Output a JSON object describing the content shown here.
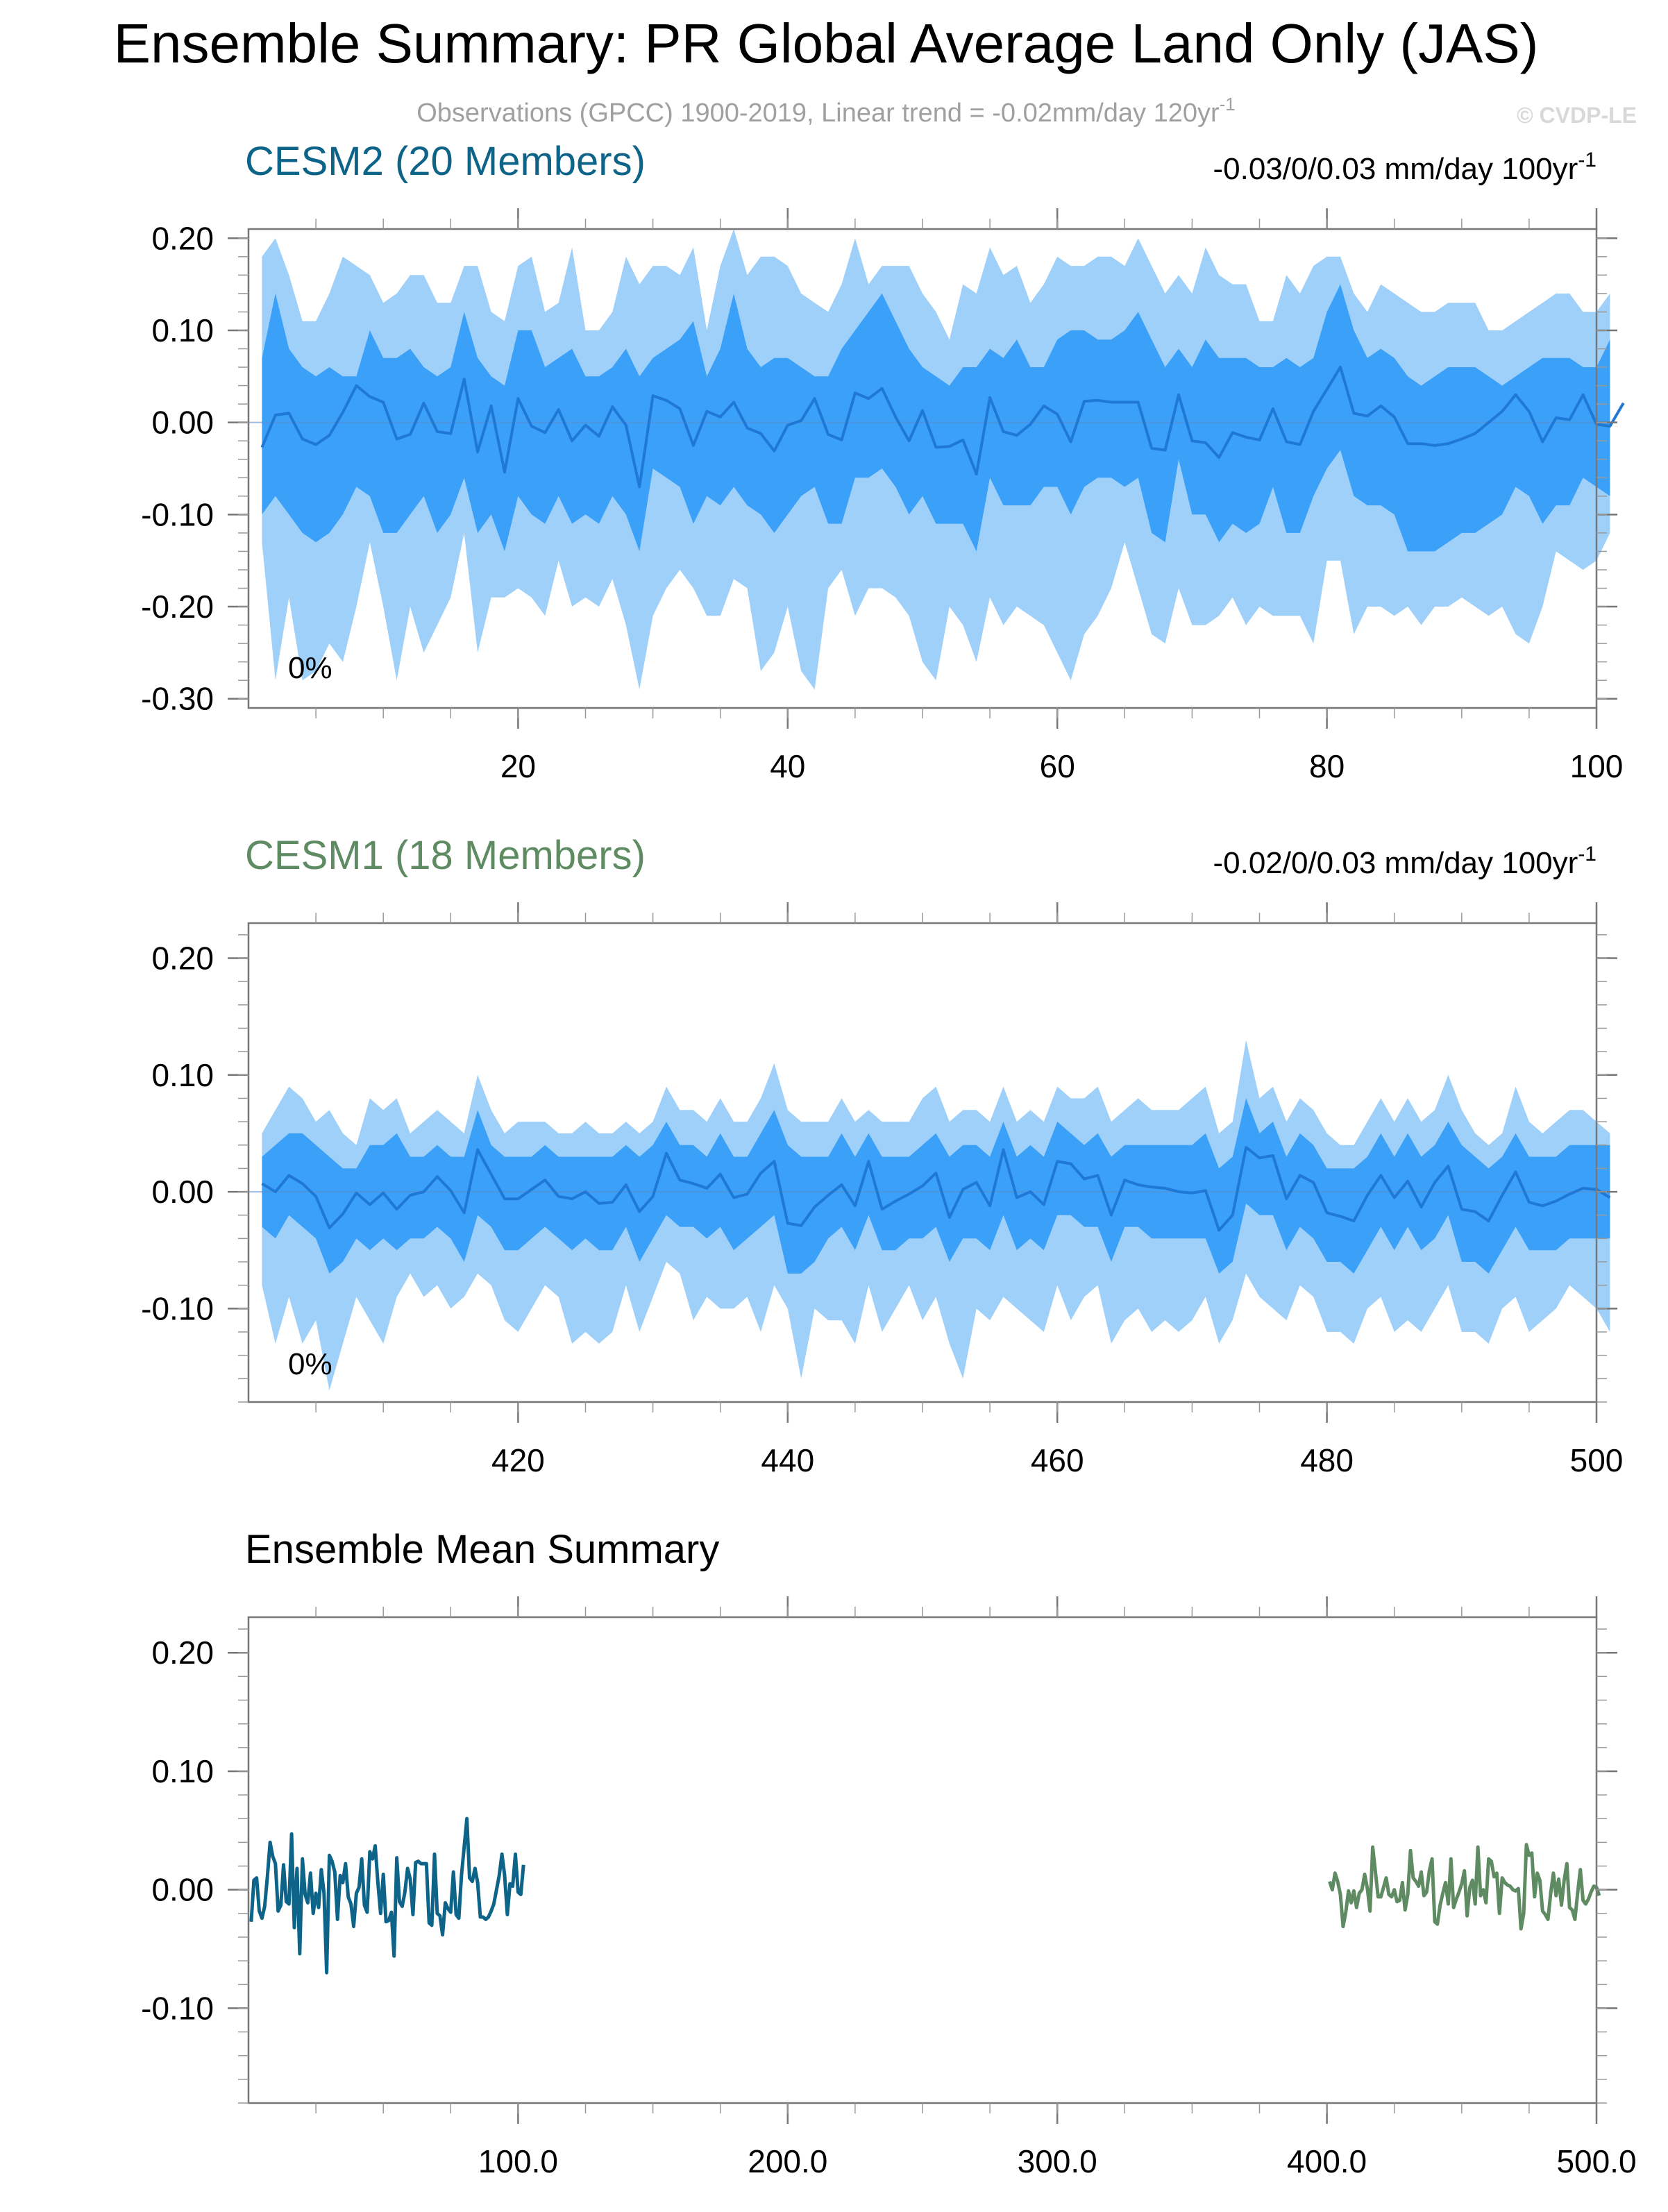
{
  "header": {
    "title": "Ensemble Summary: PR Global Average Land Only (JAS)",
    "subtitle_main": "Observations (GPCC) 1900-2019, Linear trend = -0.02mm/day 120yr",
    "subtitle_sup": "-1",
    "watermark": "© CVDP-LE"
  },
  "colors": {
    "band_outer": "#9fd0fa",
    "band_inner": "#3ba0f7",
    "mean_line": "#1f78d6",
    "cesm2": "#0d6488",
    "cesm1": "#5f8b63",
    "obs_text": "#a0a0a0"
  },
  "chart_data": [
    {
      "type": "area",
      "title": "CESM2 (20 Members)",
      "title_color": "#0d6488",
      "trend_label": "-0.03/0/0.03 mm/day 100yr",
      "trend_sup": "-1",
      "percent_label": "0%",
      "xlim": [
        0,
        100
      ],
      "ylim": [
        -0.31,
        0.21
      ],
      "xticks": [
        20,
        40,
        60,
        80,
        100
      ],
      "xtick_labels": [
        "20",
        "40",
        "60",
        "80",
        "100"
      ],
      "yticks": [
        0.2,
        0.1,
        0.0,
        -0.1,
        -0.2,
        -0.3
      ],
      "ytick_labels": [
        "0.20",
        "0.10",
        "0.00",
        "-0.10",
        "-0.20",
        "-0.30"
      ],
      "x_start": 1,
      "mean": [
        -0.027,
        0.008,
        0.01,
        -0.018,
        -0.024,
        -0.014,
        0.011,
        0.04,
        0.028,
        0.022,
        -0.018,
        -0.013,
        0.021,
        -0.01,
        -0.012,
        0.047,
        -0.032,
        0.018,
        -0.054,
        0.026,
        -0.004,
        -0.011,
        0.014,
        -0.02,
        -0.003,
        -0.015,
        0.017,
        -0.003,
        -0.07,
        0.029,
        0.024,
        0.015,
        -0.025,
        0.012,
        0.006,
        0.022,
        -0.006,
        -0.012,
        -0.031,
        -0.003,
        0.002,
        0.026,
        -0.013,
        -0.019,
        0.032,
        0.026,
        0.037,
        0.006,
        -0.02,
        0.013,
        -0.027,
        -0.026,
        -0.019,
        -0.056,
        0.027,
        -0.01,
        -0.014,
        -0.002,
        0.018,
        0.009,
        -0.021,
        0.023,
        0.024,
        0.022,
        0.022,
        0.022,
        -0.028,
        -0.03,
        0.03,
        -0.02,
        -0.022,
        -0.038,
        -0.011,
        -0.016,
        -0.019,
        0.015,
        -0.021,
        -0.024,
        0.012,
        0.036,
        0.06,
        0.01,
        0.007,
        0.018,
        0.006,
        -0.023,
        -0.023,
        -0.025,
        -0.023,
        -0.018,
        -0.012,
        0.0,
        0.012,
        0.03,
        0.012,
        -0.021,
        0.005,
        0.003,
        0.03,
        -0.002,
        -0.004,
        0.021
      ],
      "outer_hi": [
        0.18,
        0.2,
        0.16,
        0.11,
        0.11,
        0.14,
        0.18,
        0.17,
        0.16,
        0.13,
        0.14,
        0.16,
        0.16,
        0.13,
        0.13,
        0.17,
        0.17,
        0.12,
        0.11,
        0.17,
        0.18,
        0.12,
        0.13,
        0.19,
        0.1,
        0.1,
        0.12,
        0.18,
        0.15,
        0.17,
        0.17,
        0.16,
        0.19,
        0.1,
        0.17,
        0.21,
        0.16,
        0.18,
        0.18,
        0.17,
        0.14,
        0.13,
        0.12,
        0.15,
        0.2,
        0.15,
        0.17,
        0.17,
        0.17,
        0.14,
        0.12,
        0.09,
        0.15,
        0.14,
        0.19,
        0.16,
        0.17,
        0.13,
        0.15,
        0.18,
        0.17,
        0.17,
        0.18,
        0.18,
        0.17,
        0.2,
        0.17,
        0.14,
        0.16,
        0.14,
        0.19,
        0.16,
        0.15,
        0.15,
        0.11,
        0.11,
        0.16,
        0.14,
        0.17,
        0.18,
        0.18,
        0.14,
        0.12,
        0.15,
        0.14,
        0.13,
        0.12,
        0.12,
        0.13,
        0.13,
        0.13,
        0.1,
        0.1,
        0.11,
        0.12,
        0.13,
        0.14,
        0.14,
        0.12,
        0.12,
        0.14
      ],
      "inner_hi": [
        0.07,
        0.14,
        0.08,
        0.06,
        0.05,
        0.06,
        0.05,
        0.05,
        0.1,
        0.07,
        0.07,
        0.08,
        0.06,
        0.05,
        0.06,
        0.12,
        0.07,
        0.05,
        0.04,
        0.1,
        0.1,
        0.06,
        0.07,
        0.08,
        0.05,
        0.05,
        0.06,
        0.08,
        0.05,
        0.07,
        0.08,
        0.09,
        0.11,
        0.05,
        0.08,
        0.14,
        0.08,
        0.06,
        0.07,
        0.07,
        0.06,
        0.05,
        0.05,
        0.08,
        0.1,
        0.12,
        0.14,
        0.11,
        0.08,
        0.06,
        0.05,
        0.04,
        0.06,
        0.06,
        0.08,
        0.07,
        0.09,
        0.06,
        0.06,
        0.09,
        0.1,
        0.1,
        0.09,
        0.09,
        0.1,
        0.12,
        0.09,
        0.06,
        0.08,
        0.06,
        0.09,
        0.07,
        0.07,
        0.07,
        0.06,
        0.06,
        0.07,
        0.06,
        0.07,
        0.12,
        0.15,
        0.1,
        0.07,
        0.08,
        0.07,
        0.05,
        0.04,
        0.05,
        0.06,
        0.06,
        0.06,
        0.05,
        0.04,
        0.05,
        0.06,
        0.07,
        0.07,
        0.07,
        0.06,
        0.06,
        0.09
      ],
      "inner_lo": [
        -0.1,
        -0.08,
        -0.1,
        -0.12,
        -0.13,
        -0.12,
        -0.1,
        -0.07,
        -0.08,
        -0.12,
        -0.12,
        -0.1,
        -0.08,
        -0.12,
        -0.1,
        -0.06,
        -0.12,
        -0.1,
        -0.14,
        -0.08,
        -0.1,
        -0.11,
        -0.08,
        -0.11,
        -0.1,
        -0.11,
        -0.08,
        -0.1,
        -0.14,
        -0.05,
        -0.06,
        -0.07,
        -0.11,
        -0.08,
        -0.09,
        -0.07,
        -0.09,
        -0.1,
        -0.12,
        -0.1,
        -0.08,
        -0.07,
        -0.11,
        -0.11,
        -0.06,
        -0.06,
        -0.05,
        -0.07,
        -0.1,
        -0.08,
        -0.11,
        -0.11,
        -0.11,
        -0.14,
        -0.06,
        -0.09,
        -0.09,
        -0.09,
        -0.07,
        -0.07,
        -0.1,
        -0.07,
        -0.06,
        -0.06,
        -0.07,
        -0.06,
        -0.12,
        -0.13,
        -0.04,
        -0.1,
        -0.1,
        -0.13,
        -0.11,
        -0.12,
        -0.11,
        -0.07,
        -0.12,
        -0.12,
        -0.08,
        -0.05,
        -0.03,
        -0.08,
        -0.09,
        -0.09,
        -0.1,
        -0.14,
        -0.14,
        -0.14,
        -0.13,
        -0.12,
        -0.12,
        -0.11,
        -0.1,
        -0.07,
        -0.08,
        -0.11,
        -0.09,
        -0.09,
        -0.06,
        -0.07,
        -0.08
      ],
      "outer_lo": [
        -0.13,
        -0.28,
        -0.19,
        -0.28,
        -0.27,
        -0.24,
        -0.26,
        -0.2,
        -0.13,
        -0.2,
        -0.28,
        -0.2,
        -0.25,
        -0.22,
        -0.19,
        -0.12,
        -0.25,
        -0.19,
        -0.19,
        -0.18,
        -0.19,
        -0.21,
        -0.15,
        -0.2,
        -0.19,
        -0.2,
        -0.17,
        -0.22,
        -0.29,
        -0.21,
        -0.18,
        -0.16,
        -0.18,
        -0.21,
        -0.21,
        -0.17,
        -0.18,
        -0.27,
        -0.25,
        -0.2,
        -0.27,
        -0.29,
        -0.18,
        -0.16,
        -0.21,
        -0.18,
        -0.18,
        -0.19,
        -0.21,
        -0.26,
        -0.28,
        -0.2,
        -0.22,
        -0.26,
        -0.19,
        -0.22,
        -0.2,
        -0.21,
        -0.22,
        -0.25,
        -0.28,
        -0.23,
        -0.21,
        -0.18,
        -0.13,
        -0.18,
        -0.23,
        -0.24,
        -0.18,
        -0.22,
        -0.22,
        -0.21,
        -0.19,
        -0.22,
        -0.2,
        -0.21,
        -0.21,
        -0.21,
        -0.24,
        -0.15,
        -0.15,
        -0.23,
        -0.2,
        -0.2,
        -0.21,
        -0.2,
        -0.22,
        -0.2,
        -0.2,
        -0.19,
        -0.2,
        -0.21,
        -0.2,
        -0.23,
        -0.24,
        -0.2,
        -0.14,
        -0.15,
        -0.16,
        -0.15,
        -0.12
      ]
    },
    {
      "type": "area",
      "title": "CESM1 (18 Members)",
      "title_color": "#5f8b63",
      "trend_label": "-0.02/0/0.03 mm/day 100yr",
      "trend_sup": "-1",
      "percent_label": "0%",
      "xlim": [
        400,
        500
      ],
      "ylim": [
        -0.18,
        0.23
      ],
      "xticks": [
        420,
        440,
        460,
        480,
        500
      ],
      "xtick_labels": [
        "420",
        "440",
        "460",
        "480",
        "500"
      ],
      "yticks": [
        0.2,
        0.1,
        0.0,
        -0.1
      ],
      "ytick_labels": [
        "0.20",
        "0.10",
        "0.00",
        "-0.10"
      ],
      "x_start": 401,
      "mean": [
        0.007,
        0.0,
        0.014,
        0.007,
        -0.004,
        -0.031,
        -0.019,
        -0.001,
        -0.011,
        -0.001,
        -0.015,
        -0.003,
        0.0,
        0.013,
        0.001,
        -0.018,
        0.036,
        0.015,
        -0.006,
        -0.006,
        0.002,
        0.01,
        -0.004,
        -0.006,
        0.0,
        -0.01,
        -0.009,
        0.006,
        -0.017,
        -0.004,
        0.033,
        0.01,
        0.007,
        0.003,
        0.015,
        -0.005,
        -0.002,
        0.016,
        0.026,
        -0.027,
        -0.029,
        -0.013,
        -0.003,
        0.006,
        -0.012,
        0.026,
        -0.015,
        -0.008,
        -0.002,
        0.005,
        0.016,
        -0.022,
        0.002,
        0.008,
        -0.012,
        0.036,
        -0.005,
        0.0,
        -0.011,
        0.026,
        0.024,
        0.011,
        0.014,
        -0.02,
        0.01,
        0.006,
        0.004,
        0.003,
        0.0,
        -0.001,
        0.001,
        -0.033,
        -0.02,
        0.038,
        0.029,
        0.031,
        -0.006,
        0.014,
        0.008,
        -0.018,
        -0.021,
        -0.025,
        -0.003,
        0.014,
        -0.005,
        0.009,
        -0.013,
        0.008,
        0.022,
        -0.015,
        -0.017,
        -0.025,
        -0.003,
        0.017,
        -0.009,
        -0.012,
        -0.008,
        -0.002,
        0.003,
        0.002,
        -0.005
      ],
      "outer_hi": [
        0.05,
        0.07,
        0.09,
        0.08,
        0.06,
        0.07,
        0.05,
        0.04,
        0.08,
        0.07,
        0.08,
        0.05,
        0.06,
        0.07,
        0.06,
        0.05,
        0.1,
        0.07,
        0.05,
        0.06,
        0.06,
        0.06,
        0.05,
        0.05,
        0.06,
        0.05,
        0.05,
        0.06,
        0.05,
        0.06,
        0.09,
        0.07,
        0.07,
        0.06,
        0.08,
        0.06,
        0.06,
        0.08,
        0.11,
        0.07,
        0.06,
        0.06,
        0.06,
        0.08,
        0.06,
        0.07,
        0.06,
        0.06,
        0.06,
        0.08,
        0.09,
        0.06,
        0.07,
        0.07,
        0.06,
        0.09,
        0.06,
        0.07,
        0.06,
        0.09,
        0.08,
        0.08,
        0.09,
        0.06,
        0.07,
        0.08,
        0.07,
        0.07,
        0.07,
        0.08,
        0.09,
        0.05,
        0.06,
        0.13,
        0.08,
        0.09,
        0.06,
        0.08,
        0.07,
        0.05,
        0.04,
        0.04,
        0.06,
        0.08,
        0.06,
        0.08,
        0.06,
        0.07,
        0.1,
        0.07,
        0.05,
        0.04,
        0.05,
        0.09,
        0.06,
        0.05,
        0.06,
        0.07,
        0.07,
        0.06,
        0.05
      ],
      "inner_hi": [
        0.03,
        0.04,
        0.05,
        0.05,
        0.04,
        0.03,
        0.02,
        0.02,
        0.04,
        0.04,
        0.05,
        0.03,
        0.03,
        0.04,
        0.03,
        0.03,
        0.07,
        0.04,
        0.03,
        0.03,
        0.03,
        0.04,
        0.03,
        0.03,
        0.03,
        0.03,
        0.03,
        0.04,
        0.03,
        0.04,
        0.06,
        0.04,
        0.04,
        0.03,
        0.05,
        0.03,
        0.03,
        0.05,
        0.07,
        0.04,
        0.03,
        0.03,
        0.03,
        0.05,
        0.03,
        0.05,
        0.03,
        0.03,
        0.03,
        0.04,
        0.05,
        0.03,
        0.04,
        0.04,
        0.03,
        0.06,
        0.03,
        0.04,
        0.03,
        0.06,
        0.05,
        0.04,
        0.05,
        0.03,
        0.04,
        0.04,
        0.04,
        0.04,
        0.04,
        0.04,
        0.05,
        0.02,
        0.03,
        0.08,
        0.05,
        0.06,
        0.03,
        0.05,
        0.04,
        0.02,
        0.02,
        0.02,
        0.03,
        0.05,
        0.03,
        0.05,
        0.03,
        0.04,
        0.06,
        0.04,
        0.03,
        0.02,
        0.03,
        0.05,
        0.03,
        0.03,
        0.03,
        0.04,
        0.04,
        0.04,
        0.04
      ],
      "inner_lo": [
        -0.03,
        -0.04,
        -0.02,
        -0.03,
        -0.04,
        -0.07,
        -0.06,
        -0.04,
        -0.05,
        -0.04,
        -0.05,
        -0.04,
        -0.04,
        -0.03,
        -0.04,
        -0.06,
        -0.02,
        -0.03,
        -0.05,
        -0.05,
        -0.04,
        -0.03,
        -0.04,
        -0.05,
        -0.04,
        -0.05,
        -0.05,
        -0.03,
        -0.06,
        -0.04,
        -0.02,
        -0.03,
        -0.03,
        -0.04,
        -0.03,
        -0.05,
        -0.04,
        -0.03,
        -0.02,
        -0.07,
        -0.07,
        -0.06,
        -0.04,
        -0.03,
        -0.05,
        -0.02,
        -0.05,
        -0.05,
        -0.04,
        -0.04,
        -0.03,
        -0.06,
        -0.04,
        -0.04,
        -0.05,
        -0.02,
        -0.05,
        -0.04,
        -0.05,
        -0.02,
        -0.02,
        -0.03,
        -0.03,
        -0.06,
        -0.03,
        -0.03,
        -0.04,
        -0.04,
        -0.04,
        -0.04,
        -0.04,
        -0.07,
        -0.06,
        -0.01,
        -0.02,
        -0.02,
        -0.05,
        -0.03,
        -0.04,
        -0.06,
        -0.06,
        -0.07,
        -0.05,
        -0.03,
        -0.05,
        -0.03,
        -0.05,
        -0.04,
        -0.02,
        -0.06,
        -0.06,
        -0.07,
        -0.05,
        -0.03,
        -0.05,
        -0.05,
        -0.05,
        -0.04,
        -0.04,
        -0.04,
        -0.04
      ],
      "outer_lo": [
        -0.08,
        -0.13,
        -0.09,
        -0.13,
        -0.11,
        -0.17,
        -0.13,
        -0.09,
        -0.11,
        -0.13,
        -0.09,
        -0.07,
        -0.09,
        -0.08,
        -0.1,
        -0.09,
        -0.07,
        -0.08,
        -0.11,
        -0.12,
        -0.1,
        -0.08,
        -0.09,
        -0.13,
        -0.12,
        -0.13,
        -0.12,
        -0.08,
        -0.12,
        -0.09,
        -0.06,
        -0.07,
        -0.11,
        -0.09,
        -0.1,
        -0.1,
        -0.09,
        -0.12,
        -0.08,
        -0.1,
        -0.16,
        -0.1,
        -0.11,
        -0.11,
        -0.13,
        -0.08,
        -0.12,
        -0.1,
        -0.08,
        -0.11,
        -0.09,
        -0.13,
        -0.16,
        -0.1,
        -0.11,
        -0.09,
        -0.1,
        -0.11,
        -0.12,
        -0.08,
        -0.11,
        -0.09,
        -0.08,
        -0.13,
        -0.11,
        -0.1,
        -0.12,
        -0.11,
        -0.12,
        -0.11,
        -0.09,
        -0.13,
        -0.11,
        -0.07,
        -0.09,
        -0.1,
        -0.11,
        -0.08,
        -0.09,
        -0.12,
        -0.12,
        -0.13,
        -0.1,
        -0.09,
        -0.12,
        -0.11,
        -0.12,
        -0.1,
        -0.08,
        -0.12,
        -0.12,
        -0.13,
        -0.1,
        -0.09,
        -0.12,
        -0.11,
        -0.1,
        -0.08,
        -0.09,
        -0.1,
        -0.12
      ]
    },
    {
      "type": "line",
      "title": "Ensemble Mean Summary",
      "xlim": [
        0,
        500
      ],
      "ylim": [
        -0.18,
        0.23
      ],
      "xticks": [
        100,
        200,
        300,
        400,
        500
      ],
      "xtick_labels": [
        "100.0",
        "200.0",
        "300.0",
        "400.0",
        "500.0"
      ],
      "yticks": [
        0.2,
        0.1,
        0.0,
        -0.1
      ],
      "ytick_labels": [
        "0.20",
        "0.10",
        "0.00",
        "-0.10"
      ],
      "series": [
        {
          "x_start": 1,
          "color": "#0d6488",
          "ref": "cesm2"
        },
        {
          "x_start": 401,
          "color": "#5f8b63",
          "ref": "cesm1"
        }
      ]
    }
  ]
}
